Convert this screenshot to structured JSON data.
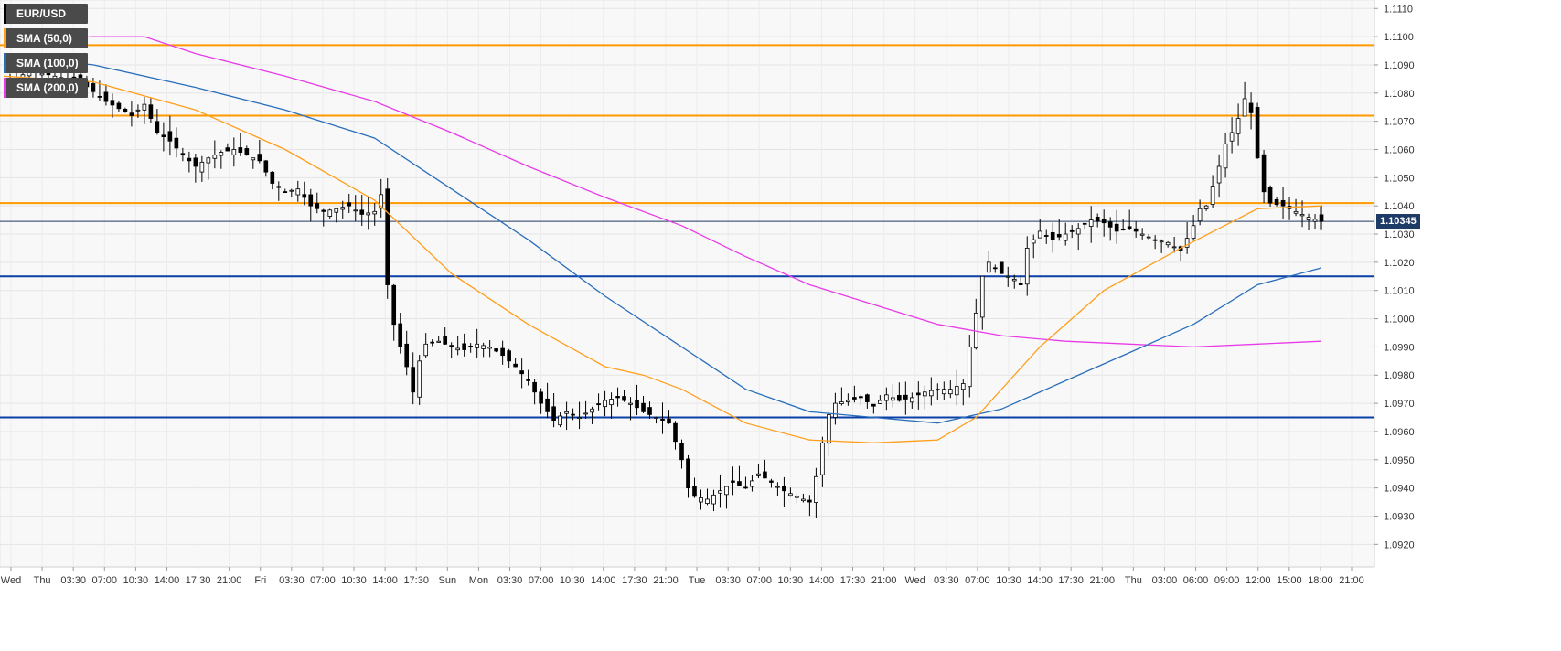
{
  "chart_data": {
    "type": "candlestick",
    "symbol": "EUR/USD",
    "last_price_label": "1.10345",
    "ylim": [
      1.0912,
      1.1113
    ],
    "y_ticks": [
      "1.0920",
      "1.0930",
      "1.0940",
      "1.0950",
      "1.0960",
      "1.0970",
      "1.0980",
      "1.0990",
      "1.1000",
      "1.1010",
      "1.1020",
      "1.1030",
      "1.1040",
      "1.1050",
      "1.1060",
      "1.1070",
      "1.1080",
      "1.1090",
      "1.1100",
      "1.1110"
    ],
    "x_ticks": [
      "Wed",
      "Thu",
      "03:30",
      "07:00",
      "10:30",
      "14:00",
      "17:30",
      "21:00",
      "Fri",
      "03:30",
      "07:00",
      "10:30",
      "14:00",
      "17:30",
      "Sun",
      "Mon",
      "03:30",
      "07:00",
      "10:30",
      "14:00",
      "17:30",
      "21:00",
      "Tue",
      "03:30",
      "07:00",
      "10:30",
      "14:00",
      "17:30",
      "21:00",
      "Wed",
      "03:30",
      "07:00",
      "10:30",
      "14:00",
      "17:30",
      "21:00",
      "Thu",
      "03:00",
      "06:00",
      "09:00",
      "12:00",
      "15:00",
      "18:00",
      "21:00"
    ],
    "legend": [
      {
        "label": "EUR/USD",
        "color": "#000000"
      },
      {
        "label": "SMA (50,0)",
        "color": "#ff9f1c"
      },
      {
        "label": "SMA (100,0)",
        "color": "#2a6ebb"
      },
      {
        "label": "SMA (200,0)",
        "color": "#e83be8"
      }
    ],
    "horizontal_levels": [
      {
        "value": 1.1097,
        "color": "#ff9900"
      },
      {
        "value": 1.1072,
        "color": "#ff9900"
      },
      {
        "value": 1.1041,
        "color": "#ff9900"
      },
      {
        "value": 1.10345,
        "color": "#1e3a66"
      },
      {
        "value": 1.1015,
        "color": "#0a3fa8"
      },
      {
        "value": 1.0965,
        "color": "#0a3fa8"
      }
    ],
    "price_path": [
      [
        0,
        1.1082
      ],
      [
        4,
        1.1088
      ],
      [
        8,
        1.1086
      ],
      [
        12,
        1.1084
      ],
      [
        16,
        1.1077
      ],
      [
        20,
        1.1072
      ],
      [
        22,
        1.1076
      ],
      [
        24,
        1.1066
      ],
      [
        26,
        1.1063
      ],
      [
        28,
        1.1058
      ],
      [
        30,
        1.1054
      ],
      [
        32,
        1.1057
      ],
      [
        34,
        1.1059
      ],
      [
        36,
        1.106
      ],
      [
        38,
        1.1058
      ],
      [
        40,
        1.1056
      ],
      [
        42,
        1.1048
      ],
      [
        44,
        1.1045
      ],
      [
        46,
        1.1046
      ],
      [
        48,
        1.104
      ],
      [
        50,
        1.1038
      ],
      [
        52,
        1.1039
      ],
      [
        54,
        1.104
      ],
      [
        56,
        1.1037
      ],
      [
        58,
        1.1038
      ],
      [
        59,
        1.1044
      ],
      [
        60,
        1.1012
      ],
      [
        61,
        1.0998
      ],
      [
        62,
        1.099
      ],
      [
        63,
        1.0983
      ],
      [
        64,
        1.0974
      ],
      [
        65,
        1.0985
      ],
      [
        66,
        1.0991
      ],
      [
        68,
        1.0992
      ],
      [
        70,
        1.099
      ],
      [
        72,
        1.0989
      ],
      [
        74,
        1.0991
      ],
      [
        76,
        1.099
      ],
      [
        78,
        1.0987
      ],
      [
        80,
        1.0983
      ],
      [
        82,
        1.0978
      ],
      [
        84,
        1.097
      ],
      [
        86,
        1.0964
      ],
      [
        88,
        1.0967
      ],
      [
        90,
        1.0965
      ],
      [
        92,
        1.0968
      ],
      [
        94,
        1.0971
      ],
      [
        96,
        1.0972
      ],
      [
        98,
        1.097
      ],
      [
        100,
        1.0967
      ],
      [
        102,
        1.0965
      ],
      [
        104,
        1.0963
      ],
      [
        106,
        1.095
      ],
      [
        107,
        1.094
      ],
      [
        108,
        1.0937
      ],
      [
        110,
        1.0936
      ],
      [
        112,
        1.0939
      ],
      [
        114,
        1.0942
      ],
      [
        116,
        1.094
      ],
      [
        118,
        1.0945
      ],
      [
        120,
        1.0942
      ],
      [
        122,
        1.0939
      ],
      [
        124,
        1.0937
      ],
      [
        126,
        1.0935
      ],
      [
        127,
        1.0944
      ],
      [
        128,
        1.0956
      ],
      [
        129,
        1.0966
      ],
      [
        130,
        1.097
      ],
      [
        132,
        1.0971
      ],
      [
        134,
        1.0972
      ],
      [
        136,
        1.0969
      ],
      [
        138,
        1.0973
      ],
      [
        140,
        1.0971
      ],
      [
        142,
        1.0972
      ],
      [
        144,
        1.0974
      ],
      [
        146,
        1.0975
      ],
      [
        148,
        1.0975
      ],
      [
        150,
        1.0977
      ],
      [
        151,
        1.099
      ],
      [
        152,
        1.1002
      ],
      [
        153,
        1.1015
      ],
      [
        154,
        1.102
      ],
      [
        156,
        1.1016
      ],
      [
        158,
        1.1014
      ],
      [
        159,
        1.1012
      ],
      [
        160,
        1.1025
      ],
      [
        162,
        1.1031
      ],
      [
        164,
        1.1028
      ],
      [
        166,
        1.103
      ],
      [
        168,
        1.1032
      ],
      [
        170,
        1.1035
      ],
      [
        172,
        1.1034
      ],
      [
        174,
        1.1031
      ],
      [
        176,
        1.1032
      ],
      [
        178,
        1.103
      ],
      [
        180,
        1.1028
      ],
      [
        182,
        1.1027
      ],
      [
        184,
        1.1024
      ],
      [
        186,
        1.1033
      ],
      [
        187,
        1.1039
      ],
      [
        188,
        1.104
      ],
      [
        190,
        1.1054
      ],
      [
        191,
        1.1062
      ],
      [
        192,
        1.1066
      ],
      [
        193,
        1.1071
      ],
      [
        194,
        1.1078
      ],
      [
        195,
        1.1073
      ],
      [
        196,
        1.1057
      ],
      [
        197,
        1.1045
      ],
      [
        198,
        1.1041
      ],
      [
        200,
        1.104
      ],
      [
        202,
        1.1038
      ],
      [
        204,
        1.1036
      ],
      [
        206,
        1.10345
      ]
    ],
    "sma_50": [
      [
        0,
        1.1086
      ],
      [
        14,
        1.1084
      ],
      [
        30,
        1.1074
      ],
      [
        44,
        1.106
      ],
      [
        58,
        1.1042
      ],
      [
        70,
        1.1016
      ],
      [
        82,
        1.0998
      ],
      [
        94,
        1.0983
      ],
      [
        100,
        1.098
      ],
      [
        106,
        1.0975
      ],
      [
        116,
        1.0963
      ],
      [
        126,
        1.0957
      ],
      [
        136,
        1.0956
      ],
      [
        146,
        1.0957
      ],
      [
        152,
        1.0965
      ],
      [
        162,
        1.099
      ],
      [
        172,
        1.101
      ],
      [
        184,
        1.1025
      ],
      [
        196,
        1.1039
      ],
      [
        206,
        1.104
      ]
    ],
    "sma_100": [
      [
        0,
        1.1093
      ],
      [
        14,
        1.109
      ],
      [
        30,
        1.1082
      ],
      [
        44,
        1.1074
      ],
      [
        58,
        1.1064
      ],
      [
        70,
        1.1046
      ],
      [
        82,
        1.1028
      ],
      [
        94,
        1.1008
      ],
      [
        106,
        1.099
      ],
      [
        116,
        1.0975
      ],
      [
        126,
        1.0967
      ],
      [
        136,
        1.0965
      ],
      [
        146,
        1.0963
      ],
      [
        156,
        1.0968
      ],
      [
        166,
        1.0978
      ],
      [
        176,
        1.0988
      ],
      [
        186,
        1.0998
      ],
      [
        196,
        1.1012
      ],
      [
        206,
        1.1018
      ]
    ],
    "sma_200": [
      [
        0,
        1.1098
      ],
      [
        14,
        1.11
      ],
      [
        22,
        1.11
      ],
      [
        30,
        1.1094
      ],
      [
        44,
        1.1086
      ],
      [
        58,
        1.1077
      ],
      [
        70,
        1.1066
      ],
      [
        82,
        1.1054
      ],
      [
        94,
        1.1043
      ],
      [
        106,
        1.1033
      ],
      [
        116,
        1.1022
      ],
      [
        126,
        1.1012
      ],
      [
        136,
        1.1005
      ],
      [
        146,
        1.0998
      ],
      [
        156,
        1.0994
      ],
      [
        166,
        1.0992
      ],
      [
        176,
        1.0991
      ],
      [
        186,
        1.099
      ],
      [
        196,
        1.0991
      ],
      [
        206,
        1.0992
      ]
    ]
  }
}
